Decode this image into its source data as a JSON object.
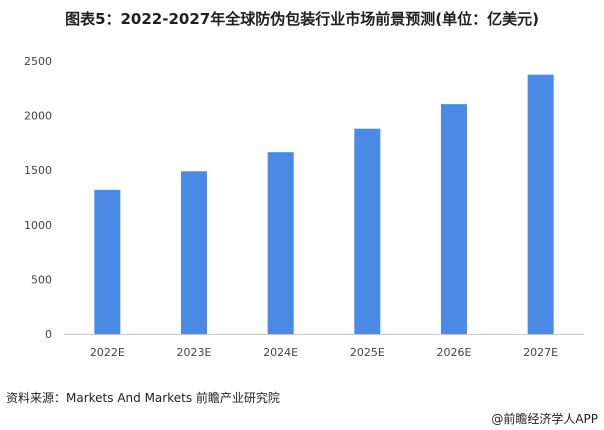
{
  "title": "图表5：2022-2027年全球防伪包装行业市场前景预测(单位：亿美元)",
  "source": "资料来源：Markets And Markets 前瞻产业研究院",
  "credit": "@前瞻经济学人APP",
  "colors": {
    "bar": "#4a8ae4",
    "axis": "#c8c8c8"
  },
  "chart_data": {
    "type": "bar",
    "categories": [
      "2022E",
      "2023E",
      "2024E",
      "2025E",
      "2026E",
      "2027E"
    ],
    "values": [
      1320,
      1490,
      1665,
      1880,
      2105,
      2375
    ],
    "ylim": [
      0,
      2500
    ],
    "yticks": [
      0,
      500,
      1000,
      1500,
      2000,
      2500
    ],
    "grid": false,
    "legend": "none"
  }
}
